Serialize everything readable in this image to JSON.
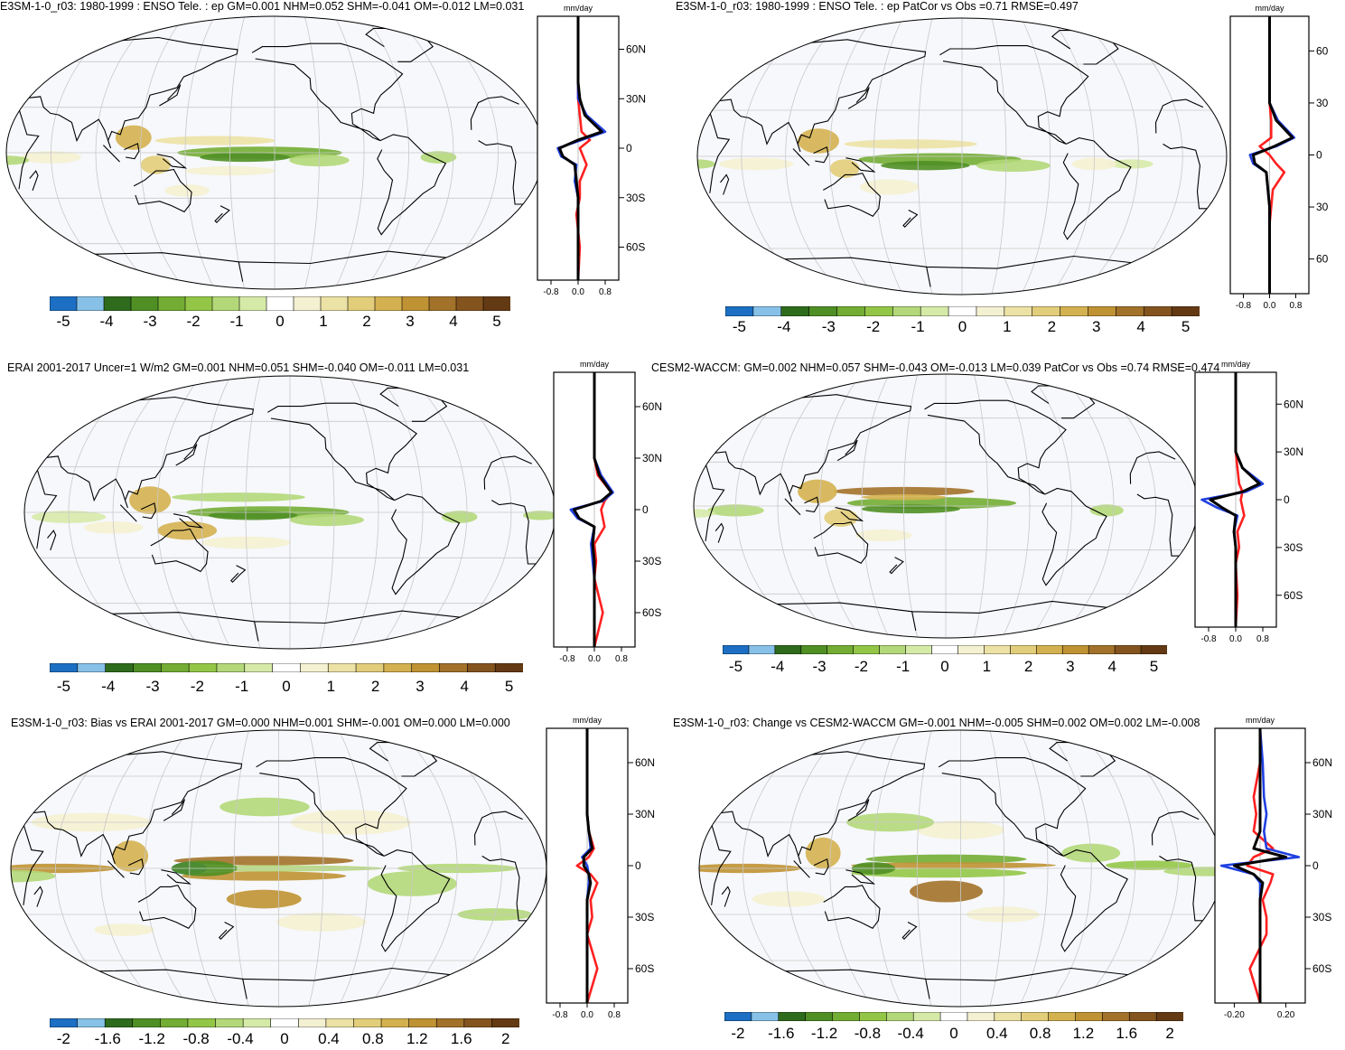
{
  "panels": [
    {
      "title": "E3SM-1-0_r03: 1980-1999 : ENSO Tele. : ep GM=0.001 NHM=0.052 SHM=-0.041 OM=-0.012 LM=0.031",
      "zonal_unit": "mm/day",
      "lat_ticks": [
        "60N",
        "30N",
        "0",
        "30S",
        "60S"
      ],
      "x_ticks": [
        "-0.8",
        "0.0",
        "0.8"
      ],
      "colorbar_labels": [
        "-5",
        "-4",
        "-3",
        "-2",
        "-1",
        "0",
        "1",
        "2",
        "3",
        "4",
        "5"
      ]
    },
    {
      "title": "E3SM-1-0_r03: 1980-1999 : ENSO Tele. : ep PatCor vs Obs =0.71 RMSE=0.497",
      "zonal_unit": "mm/day",
      "lat_ticks": [
        "60",
        "30",
        "0",
        "30",
        "60"
      ],
      "x_ticks": [
        "-0.8",
        "0.0",
        "0.8"
      ],
      "colorbar_labels": [
        "-5",
        "-4",
        "-3",
        "-2",
        "-1",
        "0",
        "1",
        "2",
        "3",
        "4",
        "5"
      ]
    },
    {
      "title": "ERAI 2001-2017 Uncer=1 W/m2 GM=0.001 NHM=0.051 SHM=-0.040 OM=-0.011 LM=0.031",
      "zonal_unit": "mm/day",
      "lat_ticks": [
        "60N",
        "30N",
        "0",
        "30S",
        "60S"
      ],
      "x_ticks": [
        "-0.8",
        "0.0",
        "0.8"
      ],
      "colorbar_labels": [
        "-5",
        "-4",
        "-3",
        "-2",
        "-1",
        "0",
        "1",
        "2",
        "3",
        "4",
        "5"
      ]
    },
    {
      "title": "CESM2-WACCM: GM=0.002 NHM=0.057 SHM=-0.043 OM=-0.013 LM=0.039 PatCor vs Obs =0.74 RMSE=0.474",
      "zonal_unit": "mm/day",
      "lat_ticks": [
        "60N",
        "30N",
        "0",
        "30S",
        "60S"
      ],
      "x_ticks": [
        "-0.8",
        "0.0",
        "0.8"
      ],
      "colorbar_labels": [
        "-5",
        "-4",
        "-3",
        "-2",
        "-1",
        "0",
        "1",
        "2",
        "3",
        "4",
        "5"
      ]
    },
    {
      "title": "E3SM-1-0_r03: Bias vs ERAI 2001-2017 GM=0.000 NHM=0.001 SHM=-0.001 OM=0.000 LM=0.000",
      "zonal_unit": "mm/day",
      "lat_ticks": [
        "60N",
        "30N",
        "0",
        "30S",
        "60S"
      ],
      "x_ticks": [
        "-0.8",
        "0.0",
        "0.8"
      ],
      "colorbar_labels": [
        "-2",
        "-1.6",
        "-1.2",
        "-0.8",
        "-0.4",
        "0",
        "0.4",
        "0.8",
        "1.2",
        "1.6",
        "2"
      ]
    },
    {
      "title": "E3SM-1-0_r03: Change vs CESM2-WACCM GM=-0.001 NHM=-0.005 SHM=0.002 OM=0.002 LM=-0.008",
      "zonal_unit": "mm/day",
      "lat_ticks": [
        "60N",
        "30N",
        "0",
        "30S",
        "60S"
      ],
      "x_ticks": [
        "-0.20",
        "0.20"
      ],
      "colorbar_labels": [
        "-2",
        "-1.6",
        "-1.2",
        "-0.8",
        "-0.4",
        "0",
        "0.4",
        "0.8",
        "1.2",
        "1.6",
        "2"
      ]
    }
  ],
  "colors": {
    "ocean": "#f7f8fc",
    "map_grid": "#c8c8c8",
    "coast": "#000000",
    "series_red": "#ff2020",
    "series_blue": "#2040e0",
    "series_black": "#000000",
    "colorbar": [
      "#1c6fc2",
      "#87c1e8",
      "#2f6b1c",
      "#4f8f24",
      "#73ad34",
      "#93c647",
      "#b3d879",
      "#d6eaa8",
      "#ffffff",
      "#f4f1d2",
      "#ece2a5",
      "#e2cd7a",
      "#d4b150",
      "#bf9233",
      "#a2722a",
      "#84541f",
      "#643a14"
    ]
  },
  "chart_data": [
    {
      "type": "heatmap",
      "title": "E3SM-1-0_r03: 1980-1999 : ENSO Tele. : ep GM=0.001 NHM=0.052 SHM=-0.041 OM=-0.012 LM=0.031",
      "colorbar_range": [
        -5,
        5
      ],
      "zonal_profile": {
        "x_range": [
          -1.2,
          1.2
        ],
        "lat": [
          -80,
          -60,
          -40,
          -30,
          -20,
          -10,
          -5,
          0,
          5,
          10,
          20,
          30,
          40,
          60,
          80
        ],
        "series": [
          {
            "color": "red",
            "values": [
              0.0,
              0.05,
              -0.05,
              0.05,
              0.05,
              0.25,
              0.15,
              0.05,
              0.35,
              0.1,
              0.05,
              0.0,
              0.0,
              0.0,
              0.0
            ]
          },
          {
            "color": "blue",
            "values": [
              0.0,
              0.0,
              0.0,
              0.0,
              -0.1,
              -0.05,
              -0.5,
              -0.6,
              0.1,
              0.8,
              0.25,
              0.0,
              0.0,
              0.0,
              0.0
            ]
          },
          {
            "color": "black",
            "values": [
              0.0,
              0.0,
              0.0,
              0.0,
              -0.05,
              -0.1,
              -0.45,
              -0.55,
              0.0,
              0.7,
              0.2,
              0.05,
              0.0,
              0.0,
              0.0
            ]
          }
        ]
      }
    },
    {
      "type": "heatmap",
      "title": "E3SM-1-0_r03: 1980-1999 : ENSO Tele. : ep PatCor vs Obs =0.71 RMSE=0.497",
      "colorbar_range": [
        -5,
        5
      ],
      "zonal_profile": {
        "x_range": [
          -1.2,
          1.2
        ],
        "lat": [
          -80,
          -60,
          -40,
          -30,
          -20,
          -10,
          -5,
          0,
          5,
          10,
          20,
          30,
          40,
          60,
          80
        ],
        "series": [
          {
            "color": "red",
            "values": [
              0.0,
              0.0,
              0.0,
              0.05,
              0.1,
              0.45,
              0.2,
              0.0,
              -0.3,
              0.05,
              0.05,
              0.0,
              0.0,
              0.0,
              0.0
            ]
          },
          {
            "color": "blue",
            "values": [
              0.0,
              0.0,
              0.0,
              0.0,
              -0.05,
              -0.1,
              -0.5,
              -0.6,
              0.2,
              0.75,
              0.25,
              0.0,
              0.0,
              0.0,
              0.0
            ]
          },
          {
            "color": "black",
            "values": [
              0.0,
              0.0,
              0.0,
              0.0,
              -0.05,
              -0.1,
              -0.45,
              -0.5,
              0.15,
              0.7,
              0.2,
              0.0,
              0.0,
              0.0,
              0.0
            ]
          }
        ]
      }
    },
    {
      "type": "heatmap",
      "title": "ERAI 2001-2017 Uncer=1 W/m2 GM=0.001 NHM=0.051 SHM=-0.040 OM=-0.011 LM=0.031",
      "colorbar_range": [
        -5,
        5
      ],
      "zonal_profile": {
        "x_range": [
          -1.2,
          1.2
        ],
        "lat": [
          -80,
          -60,
          -40,
          -30,
          -20,
          -10,
          -5,
          0,
          5,
          10,
          20,
          30,
          40,
          60,
          80
        ],
        "series": [
          {
            "color": "red",
            "values": [
              0.0,
              0.25,
              0.0,
              0.05,
              0.0,
              0.3,
              0.25,
              0.2,
              0.3,
              0.5,
              0.1,
              0.0,
              0.0,
              0.0,
              0.0
            ]
          },
          {
            "color": "blue",
            "values": [
              0.0,
              0.0,
              0.0,
              -0.05,
              -0.1,
              0.0,
              -0.5,
              -0.7,
              0.25,
              0.55,
              0.2,
              0.0,
              0.0,
              0.0,
              0.0
            ]
          },
          {
            "color": "black",
            "values": [
              0.0,
              0.0,
              0.0,
              0.0,
              -0.05,
              0.0,
              -0.45,
              -0.6,
              0.2,
              0.5,
              0.15,
              0.0,
              0.0,
              0.0,
              0.0
            ]
          }
        ]
      }
    },
    {
      "type": "heatmap",
      "title": "CESM2-WACCM: GM=0.002 NHM=0.057 SHM=-0.043 OM=-0.013 LM=0.039 PatCor vs Obs =0.74 RMSE=0.474",
      "colorbar_range": [
        -5,
        5
      ],
      "zonal_profile": {
        "x_range": [
          -1.2,
          1.2
        ],
        "lat": [
          -80,
          -60,
          -40,
          -30,
          -20,
          -10,
          -5,
          0,
          5,
          10,
          20,
          30,
          40,
          60,
          80
        ],
        "series": [
          {
            "color": "red",
            "values": [
              0.0,
              0.05,
              0.0,
              0.1,
              0.05,
              0.25,
              0.2,
              0.15,
              0.2,
              0.1,
              0.05,
              0.0,
              0.0,
              0.0,
              0.0
            ]
          },
          {
            "color": "blue",
            "values": [
              0.0,
              0.0,
              0.0,
              0.0,
              -0.05,
              0.05,
              -0.55,
              -1.0,
              0.3,
              0.8,
              0.2,
              0.0,
              0.0,
              0.0,
              0.0
            ]
          },
          {
            "color": "black",
            "values": [
              0.0,
              0.0,
              0.0,
              0.0,
              -0.05,
              0.0,
              -0.4,
              -0.75,
              0.2,
              0.7,
              0.2,
              0.0,
              0.0,
              0.0,
              0.0
            ]
          }
        ]
      }
    },
    {
      "type": "heatmap",
      "title": "E3SM-1-0_r03: Bias vs ERAI 2001-2017 GM=0.000 NHM=0.001 SHM=-0.001 OM=0.000 LM=0.000",
      "colorbar_range": [
        -2,
        2
      ],
      "zonal_profile": {
        "x_range": [
          -1.2,
          1.2
        ],
        "lat": [
          -80,
          -60,
          -40,
          -30,
          -20,
          -10,
          -5,
          0,
          5,
          10,
          20,
          30,
          40,
          60,
          80
        ],
        "series": [
          {
            "color": "red",
            "values": [
              0.0,
              0.3,
              0.0,
              0.15,
              0.1,
              0.3,
              0.1,
              -0.3,
              0.05,
              0.2,
              0.05,
              0.0,
              0.0,
              0.0,
              0.0
            ]
          },
          {
            "color": "blue",
            "values": [
              0.0,
              0.0,
              0.0,
              0.0,
              0.0,
              0.05,
              0.05,
              0.0,
              -0.15,
              0.1,
              0.05,
              0.0,
              0.0,
              0.0,
              0.0
            ]
          },
          {
            "color": "black",
            "values": [
              0.0,
              0.0,
              0.0,
              0.0,
              0.0,
              0.1,
              0.05,
              -0.1,
              -0.1,
              0.15,
              0.05,
              0.0,
              0.0,
              0.0,
              0.0
            ]
          }
        ]
      }
    },
    {
      "type": "heatmap",
      "title": "E3SM-1-0_r03: Change vs CESM2-WACCM GM=-0.001 NHM=-0.005 SHM=0.002 OM=0.002 LM=-0.008",
      "colorbar_range": [
        -2,
        2
      ],
      "zonal_profile": {
        "x_range": [
          -0.35,
          0.35
        ],
        "lat": [
          -80,
          -60,
          -40,
          -30,
          -20,
          -10,
          -5,
          0,
          5,
          10,
          20,
          30,
          40,
          60,
          80
        ],
        "series": [
          {
            "color": "red",
            "values": [
              0.0,
              -0.08,
              0.05,
              0.05,
              0.02,
              0.08,
              0.1,
              -0.1,
              -0.05,
              0.1,
              -0.05,
              -0.03,
              -0.05,
              0.0,
              0.0
            ]
          },
          {
            "color": "blue",
            "values": [
              0.0,
              0.0,
              0.0,
              0.0,
              0.0,
              0.0,
              -0.05,
              -0.3,
              0.3,
              0.05,
              0.03,
              0.05,
              0.03,
              0.02,
              0.0
            ]
          },
          {
            "color": "black",
            "values": [
              0.0,
              0.0,
              0.0,
              0.0,
              0.0,
              0.02,
              -0.05,
              -0.2,
              0.2,
              -0.05,
              0.0,
              0.0,
              0.0,
              0.0,
              0.0
            ]
          }
        ]
      }
    }
  ]
}
